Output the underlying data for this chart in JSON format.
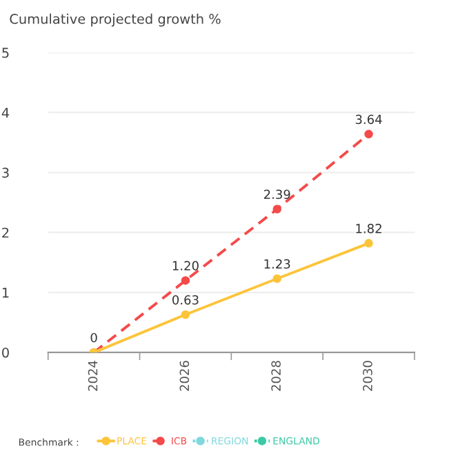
{
  "chart_data": {
    "type": "line",
    "title": "Cumulative projected growth %",
    "legend_title": "Benchmark :",
    "categories": [
      "2024",
      "2026",
      "2028",
      "2030"
    ],
    "series": [
      {
        "name": "PLACE",
        "color": "#fcc43a",
        "line_style": "solid",
        "values": [
          0,
          0.63,
          1.23,
          1.82
        ],
        "value_labels": [
          null,
          "0.63",
          "1.23",
          "1.82"
        ]
      },
      {
        "name": "ICB",
        "color": "#f44a4a",
        "line_style": "dashed",
        "values": [
          0,
          1.2,
          2.39,
          3.64
        ],
        "value_labels": [
          "0",
          "1.20",
          "2.39",
          "3.64"
        ]
      },
      {
        "name": "REGION",
        "color": "#7fd8dc",
        "line_style": "dotted",
        "values": [
          null,
          null,
          null,
          null
        ]
      },
      {
        "name": "ENGLAND",
        "color": "#3cc9a6",
        "line_style": "dotted",
        "values": [
          null,
          null,
          null,
          null
        ]
      }
    ],
    "ylim": [
      0,
      5
    ],
    "yticks": [
      0,
      1,
      2,
      3,
      4,
      5
    ],
    "grid": "y",
    "marker": "circle",
    "legend": "bottom"
  }
}
